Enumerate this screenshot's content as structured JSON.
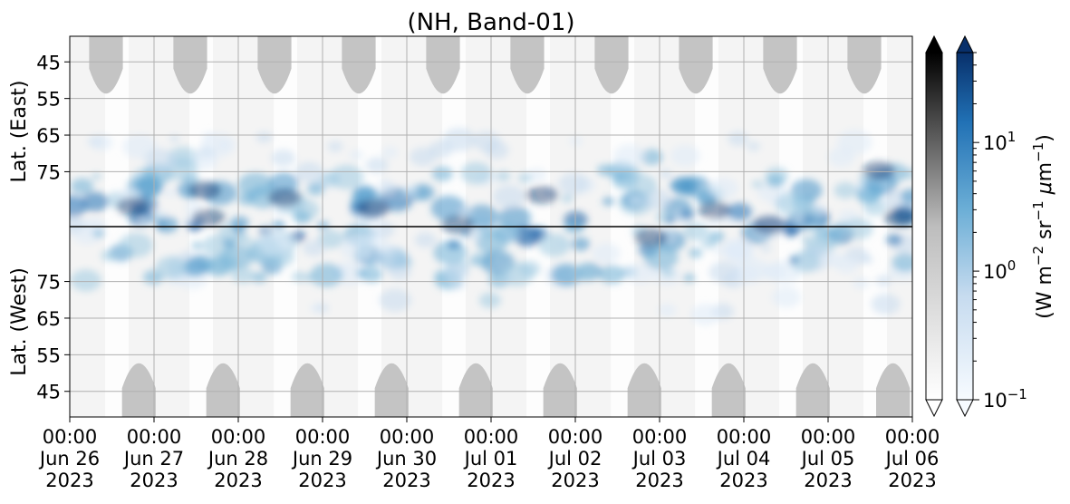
{
  "chart_data": {
    "type": "heatmap",
    "title": "(NH, Band-01)",
    "x_axis": {
      "type": "time",
      "range": [
        "2023-06-26 00:00",
        "2023-07-06 00:00"
      ],
      "ticks": [
        {
          "date": "2023-06-26",
          "lines": [
            "00:00",
            "Jun 26",
            "2023"
          ]
        },
        {
          "date": "2023-06-27",
          "lines": [
            "00:00",
            "Jun 27",
            "2023"
          ]
        },
        {
          "date": "2023-06-28",
          "lines": [
            "00:00",
            "Jun 28",
            "2023"
          ]
        },
        {
          "date": "2023-06-29",
          "lines": [
            "00:00",
            "Jun 29",
            "2023"
          ]
        },
        {
          "date": "2023-06-30",
          "lines": [
            "00:00",
            "Jun 30",
            "2023"
          ]
        },
        {
          "date": "2023-07-01",
          "lines": [
            "00:00",
            "Jul 01",
            "2023"
          ]
        },
        {
          "date": "2023-07-02",
          "lines": [
            "00:00",
            "Jul 02",
            "2023"
          ]
        },
        {
          "date": "2023-07-03",
          "lines": [
            "00:00",
            "Jul 03",
            "2023"
          ]
        },
        {
          "date": "2023-07-04",
          "lines": [
            "00:00",
            "Jul 04",
            "2023"
          ]
        },
        {
          "date": "2023-07-05",
          "lines": [
            "00:00",
            "Jul 05",
            "2023"
          ]
        },
        {
          "date": "2023-07-06",
          "lines": [
            "00:00",
            "Jul 06",
            "2023"
          ]
        }
      ]
    },
    "panels": [
      {
        "name": "east",
        "ylabel": "Lat. (East)",
        "ylim_top": 38,
        "ylim_bottom": 90,
        "yticks": [
          "45",
          "55",
          "65",
          "75"
        ]
      },
      {
        "name": "west",
        "ylabel": "Lat. (West)",
        "ylim_top": 90,
        "ylim_bottom": 38,
        "yticks": [
          "75",
          "65",
          "55",
          "45"
        ]
      }
    ],
    "grid": true,
    "colorbars": [
      {
        "name": "grayscale",
        "colormap": "Greys",
        "extend": "both"
      },
      {
        "name": "blues",
        "colormap": "Blues",
        "scale": "log",
        "range": [
          0.1,
          50
        ],
        "extend": "both",
        "label": "(W m$^{-2}$ sr$^{-1}$ μm$^{-1}$)",
        "ticks": [
          {
            "value": 10,
            "base": "10",
            "exp": "1"
          },
          {
            "value": 1,
            "base": "10",
            "exp": "0"
          },
          {
            "value": 0.1,
            "base": "10",
            "exp": "−1"
          }
        ]
      }
    ],
    "colors": {
      "night_gray": "#c4c4c4",
      "blue_light": "#d6e6f4",
      "blue_mid": "#6baed6",
      "blue_dark": "#08306b"
    }
  }
}
